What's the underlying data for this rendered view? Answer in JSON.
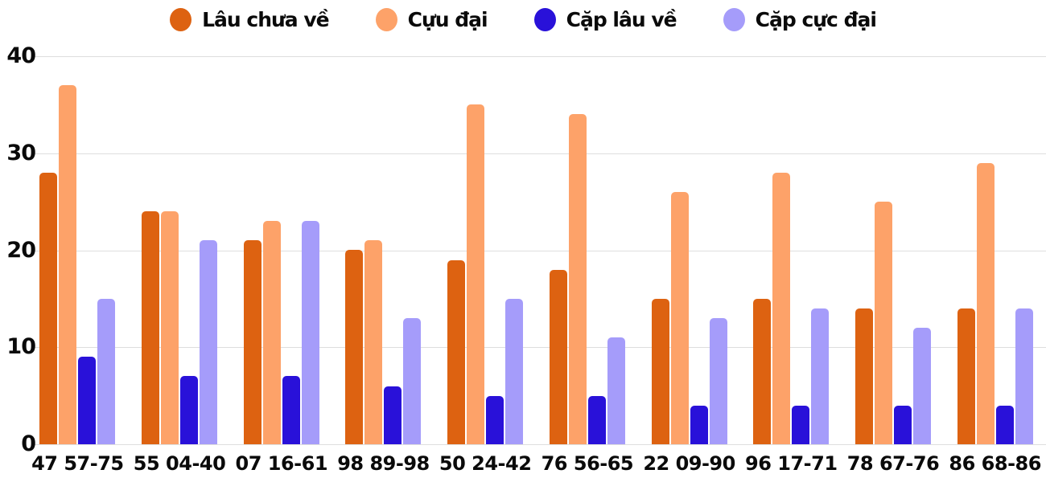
{
  "style": {
    "background": "#ffffff",
    "grid_color": "#dedede",
    "text_color": "#0a0a0a"
  },
  "chart_data": {
    "type": "bar",
    "title": "",
    "xlabel": "",
    "ylabel": "",
    "ylim": [
      0,
      40
    ],
    "yticks": [
      0,
      10,
      20,
      30,
      40
    ],
    "grid": "horizontal",
    "legend_position": "top-center",
    "categories": [
      "47 57-75",
      "55 04-40",
      "07 16-61",
      "98 89-98",
      "50 24-42",
      "76 56-65",
      "22 09-90",
      "96 17-71",
      "78 67-76",
      "86 68-86"
    ],
    "series": [
      {
        "name": "Lâu chưa về",
        "color": "#dd6211",
        "values": [
          28,
          24,
          21,
          20,
          19,
          18,
          15,
          15,
          14,
          14
        ]
      },
      {
        "name": "Cựu đại",
        "color": "#fda269",
        "values": [
          37,
          24,
          23,
          21,
          35,
          34,
          26,
          28,
          25,
          29
        ]
      },
      {
        "name": "Cặp lâu về",
        "color": "#2911d9",
        "values": [
          9,
          7,
          7,
          6,
          5,
          5,
          4,
          4,
          4,
          4
        ]
      },
      {
        "name": "Cặp cực đại",
        "color": "#a59cfa",
        "values": [
          15,
          21,
          23,
          13,
          15,
          11,
          13,
          14,
          12,
          14
        ]
      }
    ]
  }
}
